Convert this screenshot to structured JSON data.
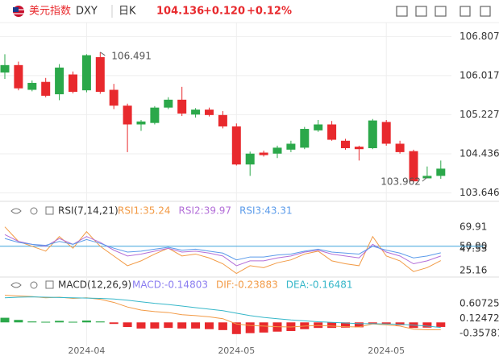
{
  "header": {
    "name": "美元指数",
    "symbol": "DXY",
    "period": "日K",
    "price": "104.136",
    "change": "+0.120",
    "change_pct": "+0.12%"
  },
  "chart_data": [
    {
      "type": "candlestick",
      "up_color": "#2ba84a",
      "down_color": "#e8292d",
      "categories": [
        null,
        null,
        null,
        null,
        null,
        null,
        "2024-04",
        null,
        null,
        null,
        null,
        null,
        null,
        null,
        null,
        null,
        null,
        "2024-05",
        null,
        null,
        null,
        null,
        null,
        null,
        null,
        null,
        null,
        null,
        "2024-05",
        null,
        null,
        null,
        null
      ],
      "open": [
        106.08,
        106.23,
        105.73,
        105.89,
        105.64,
        106.04,
        105.72,
        106.39,
        105.73,
        105.41,
        105.03,
        105.06,
        105.37,
        105.53,
        105.23,
        105.33,
        105.22,
        104.99,
        104.22,
        104.46,
        104.44,
        104.52,
        104.56,
        104.91,
        105.03,
        104.7,
        104.58,
        104.55,
        105.08,
        104.64,
        104.49,
        103.94,
        103.99
      ],
      "high": [
        106.45,
        106.3,
        105.92,
        105.97,
        106.25,
        106.1,
        106.45,
        106.491,
        105.85,
        105.45,
        105.12,
        105.4,
        105.58,
        105.79,
        105.36,
        105.37,
        105.3,
        105.05,
        104.48,
        104.5,
        104.6,
        104.7,
        104.98,
        105.12,
        105.1,
        104.74,
        104.6,
        105.14,
        105.12,
        104.7,
        104.52,
        104.18,
        104.3
      ],
      "low": [
        105.95,
        105.72,
        105.7,
        105.58,
        105.52,
        105.66,
        105.68,
        105.65,
        105.34,
        104.47,
        104.9,
        105.03,
        105.34,
        105.2,
        105.17,
        105.19,
        104.95,
        104.2,
        103.99,
        104.38,
        104.35,
        104.47,
        104.53,
        104.88,
        104.7,
        104.52,
        104.3,
        104.53,
        104.6,
        104.44,
        103.86,
        103.962,
        103.93
      ],
      "close": [
        106.23,
        105.76,
        105.87,
        105.61,
        106.18,
        105.69,
        106.43,
        105.69,
        105.41,
        105.03,
        105.09,
        105.37,
        105.53,
        105.25,
        105.33,
        105.22,
        104.99,
        104.22,
        104.44,
        104.41,
        104.56,
        104.64,
        104.94,
        105.03,
        104.72,
        104.55,
        104.53,
        105.11,
        104.64,
        104.47,
        103.88,
        103.99,
        104.136
      ],
      "max_label": 106.491,
      "min_label": 103.962,
      "ylim": [
        103.54,
        106.96
      ],
      "yticks": [
        103.646,
        104.436,
        105.227,
        106.017,
        106.807
      ],
      "grid": true
    },
    {
      "type": "line",
      "title": "RSI(7,14,21)",
      "series": [
        {
          "name": "RSI1:35.24",
          "color": "#f29a45",
          "values": [
            70,
            55,
            50,
            45,
            60,
            48,
            65,
            50,
            40,
            30,
            35,
            42,
            48,
            40,
            42,
            38,
            32,
            22,
            30,
            28,
            33,
            36,
            42,
            45,
            35,
            32,
            30,
            60,
            40,
            35,
            24,
            28,
            35.24
          ]
        },
        {
          "name": "RSI2:39.97",
          "color": "#b36fd8",
          "values": [
            62,
            55,
            52,
            50,
            58,
            52,
            60,
            54,
            46,
            40,
            42,
            45,
            48,
            44,
            45,
            43,
            40,
            30,
            35,
            35,
            38,
            40,
            44,
            46,
            42,
            40,
            38,
            52,
            44,
            40,
            32,
            35,
            39.97
          ]
        },
        {
          "name": "RSI3:43.31",
          "color": "#5b9bea",
          "values": [
            58,
            54,
            52,
            51,
            55,
            52,
            57,
            53,
            48,
            44,
            45,
            47,
            49,
            46,
            47,
            45,
            43,
            36,
            39,
            39,
            41,
            42,
            45,
            47,
            44,
            43,
            42,
            50,
            46,
            43,
            38,
            40,
            43.31
          ]
        }
      ],
      "ref_line": {
        "value": 50,
        "color": "#3fa3dc"
      },
      "ylim": [
        20,
        78
      ],
      "yticks": [
        25.16,
        47.53,
        {
          "value": 50,
          "label": "50.00"
        },
        69.91
      ],
      "grid": false
    },
    {
      "type": "macd",
      "title": "MACD(12,26,9)",
      "up_color": "#2ba84a",
      "down_color": "#e8292d",
      "series": [
        {
          "name": "MACD:-0.14803",
          "color": "#8a7cf0",
          "values": [
            0.15,
            0.08,
            0.03,
            0.02,
            0.05,
            0.02,
            0.06,
            0.03,
            -0.05,
            -0.15,
            -0.2,
            -0.2,
            -0.18,
            -0.2,
            -0.2,
            -0.22,
            -0.25,
            -0.38,
            -0.35,
            -0.33,
            -0.3,
            -0.28,
            -0.22,
            -0.18,
            -0.18,
            -0.17,
            -0.16,
            -0.05,
            -0.06,
            -0.09,
            -0.18,
            -0.17,
            -0.14803
          ]
        },
        {
          "name": "DIF:-0.23883",
          "color": "#f29a45",
          "values": [
            0.88,
            0.86,
            0.84,
            0.8,
            0.82,
            0.78,
            0.8,
            0.75,
            0.65,
            0.5,
            0.4,
            0.35,
            0.32,
            0.25,
            0.22,
            0.18,
            0.12,
            -0.05,
            -0.1,
            -0.12,
            -0.14,
            -0.15,
            -0.12,
            -0.1,
            -0.12,
            -0.14,
            -0.15,
            -0.05,
            -0.08,
            -0.12,
            -0.22,
            -0.24,
            -0.23883
          ]
        },
        {
          "name": "DEA:-0.16481",
          "color": "#36b7c9",
          "values": [
            0.8,
            0.82,
            0.83,
            0.82,
            0.81,
            0.8,
            0.79,
            0.78,
            0.76,
            0.72,
            0.67,
            0.62,
            0.58,
            0.53,
            0.48,
            0.43,
            0.38,
            0.3,
            0.22,
            0.16,
            0.12,
            0.08,
            0.05,
            0.02,
            0.0,
            -0.02,
            -0.04,
            -0.04,
            -0.05,
            -0.06,
            -0.09,
            -0.12,
            -0.16481
          ]
        }
      ],
      "ylim": [
        -0.83,
        0.95
      ],
      "yticks": [
        -0.35781,
        0.12472,
        0.60725
      ],
      "grid": false
    }
  ]
}
